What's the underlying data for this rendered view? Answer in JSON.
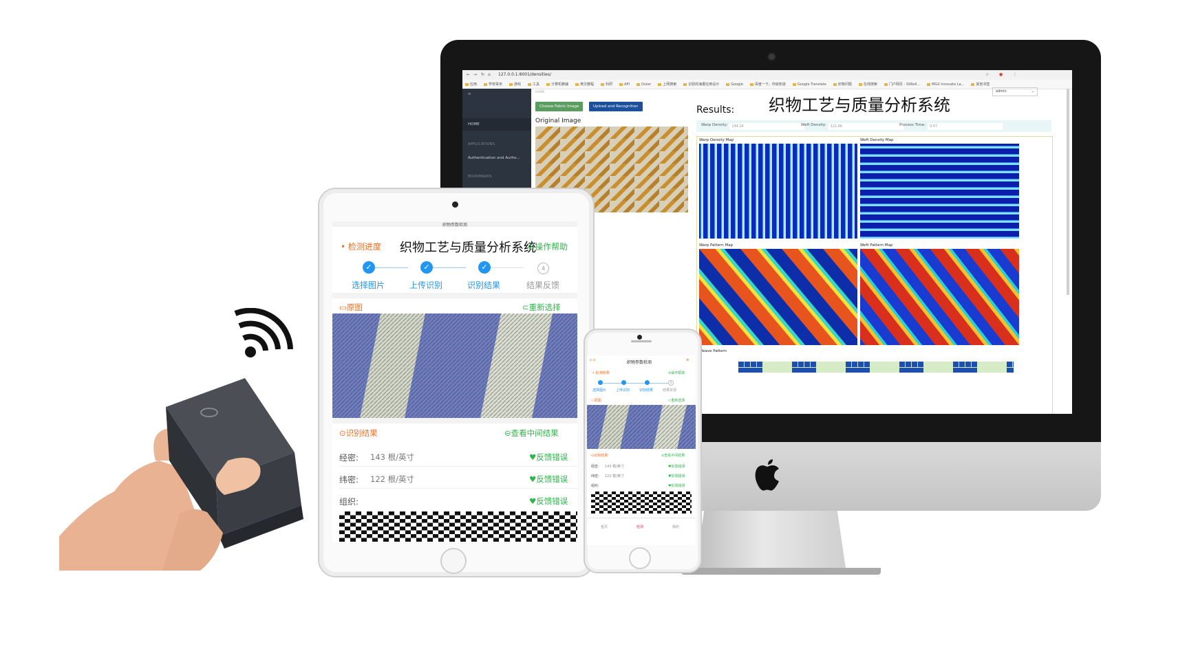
{
  "desktop": {
    "browser": {
      "url": "127.0.0.1:8001/densities/",
      "bookmarks": [
        "应用",
        "学校事务",
        "游戏",
        "工具",
        "计算机教辅",
        "英文教程",
        "科研",
        "API",
        "Outer",
        "上网搜索",
        "识别的海量应用设计",
        "Google",
        "百度一下，你就知道",
        "Google Translate",
        "织物问题",
        "在线搜索",
        "门户网页 - SSRoll...",
        "MGX Innovate La...",
        "其他书签"
      ]
    },
    "sidebar": {
      "home": "HOME",
      "section_applications": "APPLICATIONS",
      "auth_item": "Authentication and Autho...",
      "section_bookmarks": "BOOKMARKS",
      "crumb": "HOME"
    },
    "buttons": {
      "choose": "Choose Fabric Image",
      "upload": "Upload and Recognition"
    },
    "original_label": "Original Image",
    "results_label": "Results:",
    "app_title": "织物工艺与质量分析系统",
    "admin_select": "admin",
    "metrics": [
      {
        "label": "Warp Density:",
        "value": "144.24"
      },
      {
        "label": "Weft Density:",
        "value": "121.66"
      },
      {
        "label": "Process Time:",
        "value": "0.47"
      }
    ],
    "maps": {
      "warp_density": "Warp Density Map",
      "weft_density": "Weft Density Map",
      "warp_pattern": "Warp Pattern Map",
      "weft_pattern": "Weft Pattern Map",
      "weave_pattern": "Weave Pattern"
    },
    "colors": {
      "button_green": "#5b9c5f",
      "button_blue": "#1c4f9c",
      "sidebar": "#2c3440"
    }
  },
  "tablet": {
    "header": "织物参数检测",
    "progress": "检测进度",
    "title": "织物工艺与质量分析系统",
    "help": "操作帮助",
    "steps": [
      {
        "label": "选择图片",
        "done": true
      },
      {
        "label": "上传识别",
        "done": true
      },
      {
        "label": "识别结果",
        "done": true
      },
      {
        "label": "结果反馈",
        "done": false,
        "num": "4"
      }
    ],
    "original": "原图",
    "reselect": "重新选择",
    "result": "识别结果",
    "view_intermediate": "查看中间结果",
    "rows": [
      {
        "label": "经密:",
        "value": "143 根/英寸",
        "action": "反馈错误"
      },
      {
        "label": "纬密:",
        "value": "122 根/英寸",
        "action": "反馈错误"
      },
      {
        "label": "组织:",
        "value": "",
        "action": "反馈错误"
      }
    ],
    "colors": {
      "accent_blue": "#2196f3",
      "orange": "#f36f20",
      "green": "#31b44b"
    }
  },
  "phone": {
    "header": "织物参数检测",
    "progress": "检测结果",
    "help": "操作帮助",
    "steps": [
      "选择图片",
      "上传识别",
      "识别结果",
      "结果反馈"
    ],
    "step4_num": "4",
    "original": "原图",
    "reselect": "重新选择",
    "result": "识别结果",
    "view_intermediate": "查看中间结果",
    "rows": [
      {
        "label": "经密:",
        "value": "143 根/英寸",
        "action": "反馈错误"
      },
      {
        "label": "纬密:",
        "value": "122 根/英寸",
        "action": "反馈错误"
      },
      {
        "label": "组织:",
        "value": "",
        "action": "反馈错误"
      }
    ],
    "tabs": [
      "首页",
      "检测",
      "我的"
    ]
  }
}
